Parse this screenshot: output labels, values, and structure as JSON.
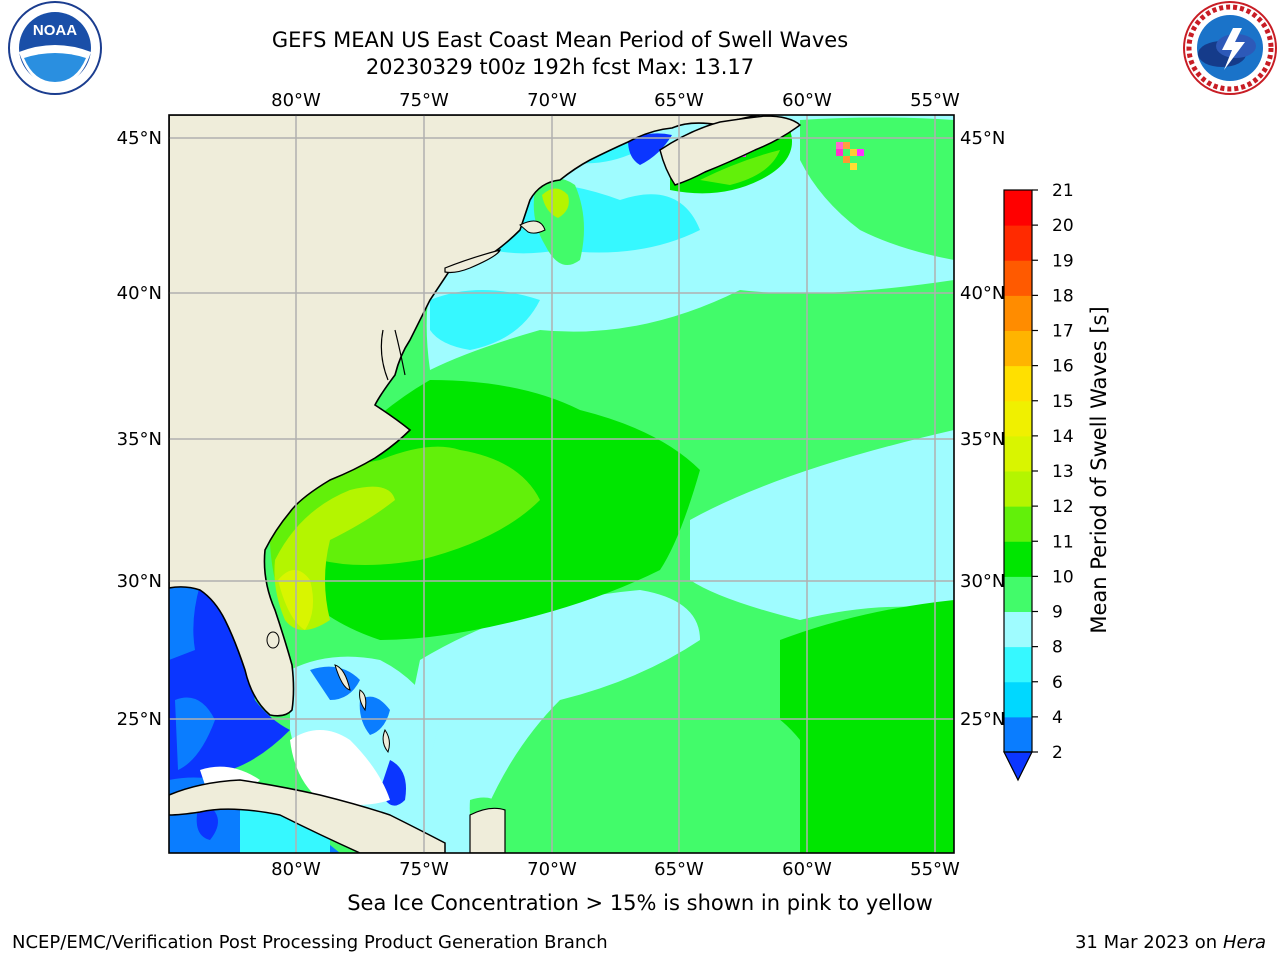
{
  "header": {
    "title_line1": "GEFS MEAN US East Coast Mean Period of Swell Waves",
    "title_line2": "20230329 t00z 192h fcst   Max: 13.17"
  },
  "logos": {
    "left": "NOAA",
    "left_ring": "NATIONAL OCEANIC AND ATMOSPHERIC ADMINISTRATION · U.S. DEPARTMENT OF COMMERCE",
    "right_ring": "NATIONAL WEATHER SERVICE"
  },
  "map": {
    "lon_labels": [
      "80°W",
      "75°W",
      "70°W",
      "65°W",
      "60°W",
      "55°W"
    ],
    "lat_labels": [
      "45°N",
      "40°N",
      "35°N",
      "30°N",
      "25°N"
    ]
  },
  "colorbar": {
    "label": "Mean Period of Swell Waves [s]",
    "ticks": [
      "2",
      "4",
      "6",
      "8",
      "9",
      "10",
      "11",
      "12",
      "13",
      "14",
      "15",
      "16",
      "17",
      "18",
      "19",
      "20",
      "21"
    ],
    "colors": [
      "#0b36ff",
      "#0a7dff",
      "#00d8ff",
      "#36f8ff",
      "#9ffcff",
      "#42fb6a",
      "#00e600",
      "#62f00a",
      "#b4f500",
      "#d9f500",
      "#f0f000",
      "#ffe000",
      "#ffb400",
      "#ff8c00",
      "#ff5a00",
      "#ff2a00",
      "#ff0000"
    ]
  },
  "footer": {
    "note": "Sea Ice Concentration > 15% is shown in pink to yellow",
    "credit": "NCEP/EMC/Verification Post Processing Product Generation Branch",
    "date": "31 Mar 2023 on",
    "machine": "Hera"
  }
}
